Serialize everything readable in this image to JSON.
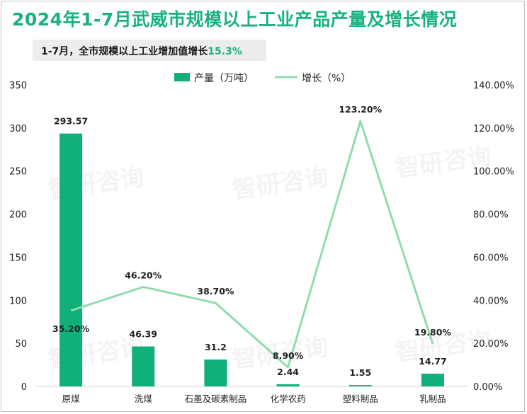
{
  "header": {
    "title": "2024年1-7月武威市规模以上工业产品产量及增长情况",
    "subtitle_prefix": "1-7月，全市规模以上工业增加值增长",
    "subtitle_value": "15.3%"
  },
  "watermark": "智研咨询",
  "colors": {
    "bar": "#0fb07a",
    "line": "#8fdcae",
    "accent": "#19b27c"
  },
  "chart_data": {
    "type": "bar+line",
    "title": "2024年1-7月武威市规模以上工业产品产量及增长情况",
    "categories": [
      "原煤",
      "洗煤",
      "石墨及碳素制品",
      "化学农药",
      "塑料制品",
      "乳制品"
    ],
    "series": [
      {
        "name": "产量（万吨）",
        "type": "bar",
        "axis": "left",
        "values": [
          293.57,
          46.39,
          31.2,
          2.44,
          1.55,
          14.77
        ],
        "labels": [
          "293.57",
          "46.39",
          "31.2",
          "2.44",
          "1.55",
          "14.77"
        ]
      },
      {
        "name": "增长（%）",
        "type": "line",
        "axis": "right",
        "values": [
          35.2,
          46.2,
          38.7,
          8.9,
          123.2,
          19.8
        ],
        "labels": [
          "35.20%",
          "46.20%",
          "38.70%",
          "8.90%",
          "123.20%",
          "19.80%"
        ]
      }
    ],
    "left_axis": {
      "min": 0,
      "max": 350,
      "step": 50,
      "ticks": [
        "0",
        "50",
        "100",
        "150",
        "200",
        "250",
        "300",
        "350"
      ]
    },
    "right_axis": {
      "min": 0,
      "max": 140,
      "step": 20,
      "ticks": [
        "0.00%",
        "20.00%",
        "40.00%",
        "60.00%",
        "80.00%",
        "100.00%",
        "120.00%",
        "140.00%"
      ]
    },
    "legend": [
      "产量（万吨）",
      "增长（%）"
    ],
    "legend_position": "top",
    "grid": false
  }
}
